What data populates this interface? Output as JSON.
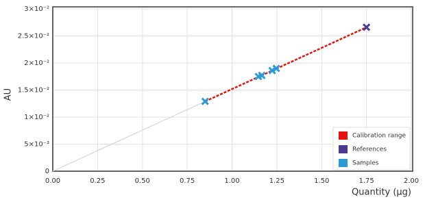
{
  "chart_data": {
    "type": "scatter",
    "x_label": "Quantity (µg)",
    "y_label": "AU",
    "xlim": [
      0,
      2
    ],
    "ylim": [
      0,
      0.03
    ],
    "xticks": [
      {
        "value": 0,
        "label": "0.00"
      },
      {
        "value": 0.25,
        "label": "0.25"
      },
      {
        "value": 0.5,
        "label": "0.50"
      },
      {
        "value": 0.75,
        "label": "0.75"
      },
      {
        "value": 1,
        "label": "1.00"
      },
      {
        "value": 1.25,
        "label": "1.25"
      },
      {
        "value": 1.5,
        "label": "1.50"
      },
      {
        "value": 1.75,
        "label": "1.75"
      },
      {
        "value": 2,
        "label": "2.00"
      }
    ],
    "yticks": [
      0,
      {
        "value": 0.005,
        "label": "5×10⁻³"
      },
      {
        "value": 0.01,
        "label": "1×10⁻²"
      },
      {
        "value": 0.015,
        "label": "1.5×10⁻²"
      },
      {
        "value": 0.02,
        "label": "2×10⁻²"
      },
      {
        "value": 0.025,
        "label": "2.5×10⁻²"
      },
      {
        "value": 0.03,
        "label": "3×10⁻²"
      }
    ],
    "grid": true,
    "legend_position": "lower right",
    "fit_line": {
      "x": [
        0,
        0.85
      ],
      "values": [
        0,
        0.0129
      ],
      "color": "#d6d6d6"
    },
    "series": [
      {
        "name": "Calibration range",
        "color": "#e8120c",
        "style": "line",
        "x": [
          0.85,
          1.75
        ],
        "values": [
          0.0129,
          0.0266
        ]
      },
      {
        "name": "References",
        "color": "#4b3a8f",
        "style": "marker",
        "x": [
          1.75
        ],
        "values": [
          0.0266
        ]
      },
      {
        "name": "Samples",
        "color": "#2a9bd6",
        "style": "marker",
        "x": [
          0.85,
          1.147,
          1.166,
          1.224,
          1.247
        ],
        "values": [
          0.0129,
          0.0175,
          0.0177,
          0.0186,
          0.019
        ]
      }
    ]
  }
}
